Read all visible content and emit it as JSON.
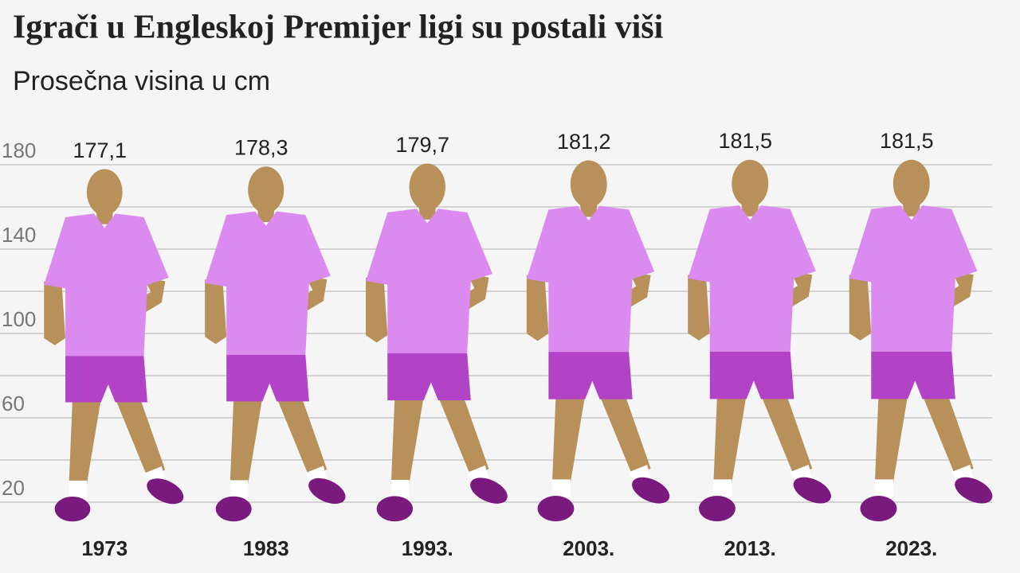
{
  "chart_data": {
    "type": "pictogram",
    "title": "Igrači u Engleskoj Premijer ligi su postali viši",
    "subtitle": "Prosečna visina u cm",
    "categories": [
      "1973",
      "1983",
      "1993.",
      "2003.",
      "2013.",
      "2023."
    ],
    "values": [
      177.1,
      178.3,
      179.7,
      181.2,
      181.5,
      181.5
    ],
    "value_labels": [
      "177,1",
      "178,3",
      "179,7",
      "181,2",
      "181,5",
      "181,5"
    ],
    "ylim": [
      0,
      180
    ],
    "yticks": [
      20,
      60,
      100,
      140,
      180
    ],
    "minor_yticks": [
      40,
      80,
      120,
      160
    ],
    "grid": true,
    "colors": {
      "shirt": "#db8bef",
      "shorts": "#b243c6",
      "skin": "#b8915a",
      "shoes": "#7b1a7e",
      "socks": "#ffffff"
    }
  }
}
